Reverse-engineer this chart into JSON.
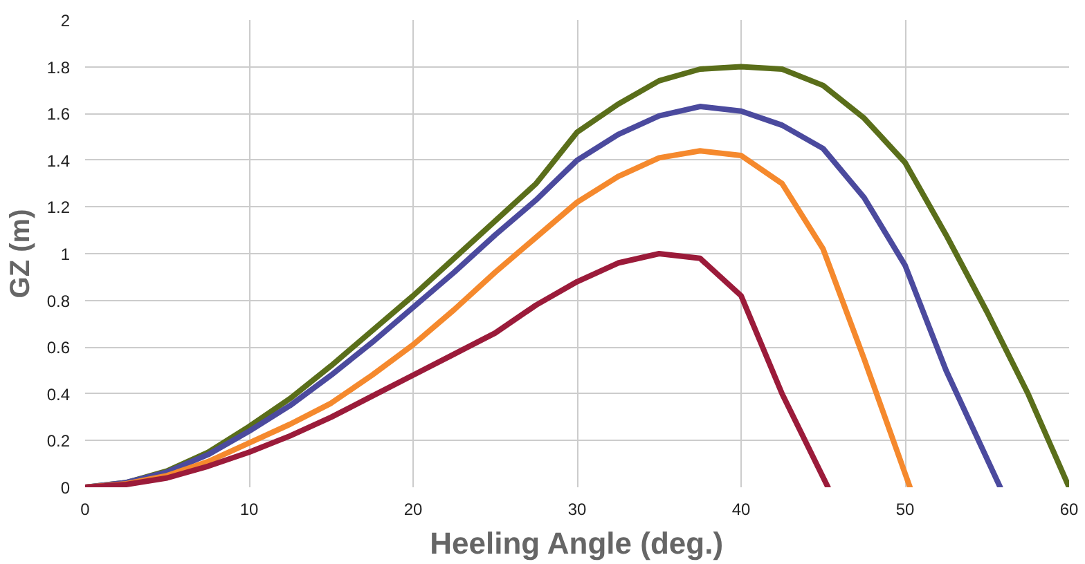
{
  "chart_data": {
    "type": "line",
    "xlabel": "Heeling Angle (deg.)",
    "ylabel": "GZ (m)",
    "xlim": [
      0,
      60
    ],
    "xticks": [
      0,
      10,
      20,
      30,
      40,
      50,
      60
    ],
    "ylim": [
      0,
      2
    ],
    "yticks": [
      0,
      0.2,
      0.4,
      0.6,
      0.8,
      1,
      1.2,
      1.4,
      1.6,
      1.8,
      2
    ],
    "grid": true,
    "marker": "none",
    "line_style": "solid",
    "series": [
      {
        "color": "#5a6e1a",
        "x": [
          0,
          2.5,
          5,
          7.5,
          10,
          12.5,
          15,
          17.5,
          20,
          22.5,
          25,
          27.5,
          30,
          32.5,
          35,
          37.5,
          40,
          42.5,
          45,
          47.5,
          50,
          52.5,
          55,
          57.5,
          60
        ],
        "values": [
          0,
          0.02,
          0.07,
          0.15,
          0.26,
          0.38,
          0.52,
          0.67,
          0.82,
          0.98,
          1.14,
          1.3,
          1.52,
          1.64,
          1.74,
          1.79,
          1.8,
          1.79,
          1.72,
          1.58,
          1.39,
          1.08,
          0.75,
          0.4,
          0
        ]
      },
      {
        "color": "#4b4a9e",
        "x": [
          0,
          2.5,
          5,
          7.5,
          10,
          12.5,
          15,
          17.5,
          20,
          22.5,
          25,
          27.5,
          30,
          32.5,
          35,
          37.5,
          40,
          42.5,
          45,
          47.5,
          50,
          52.5,
          55.8
        ],
        "values": [
          0,
          0.02,
          0.065,
          0.14,
          0.24,
          0.35,
          0.48,
          0.62,
          0.77,
          0.92,
          1.08,
          1.23,
          1.4,
          1.51,
          1.59,
          1.63,
          1.61,
          1.55,
          1.45,
          1.24,
          0.95,
          0.5,
          0
        ]
      },
      {
        "color": "#f5892d",
        "x": [
          0,
          2.5,
          5,
          7.5,
          10,
          12.5,
          15,
          17.5,
          20,
          22.5,
          25,
          27.5,
          30,
          32.5,
          35,
          37.5,
          40,
          42.5,
          45,
          47.5,
          50.3
        ],
        "values": [
          0,
          0.015,
          0.05,
          0.11,
          0.19,
          0.27,
          0.36,
          0.48,
          0.61,
          0.76,
          0.92,
          1.07,
          1.22,
          1.33,
          1.41,
          1.44,
          1.42,
          1.3,
          1.02,
          0.55,
          0
        ]
      },
      {
        "color": "#9b1b3a",
        "x": [
          0,
          2.5,
          5,
          7.5,
          10,
          12.5,
          15,
          17.5,
          20,
          22.5,
          25,
          27.5,
          30,
          32.5,
          35,
          37.5,
          40,
          42.5,
          45.3
        ],
        "values": [
          0,
          0.012,
          0.04,
          0.09,
          0.15,
          0.22,
          0.3,
          0.39,
          0.48,
          0.57,
          0.66,
          0.78,
          0.88,
          0.96,
          1.0,
          0.98,
          0.82,
          0.4,
          0
        ]
      }
    ]
  }
}
